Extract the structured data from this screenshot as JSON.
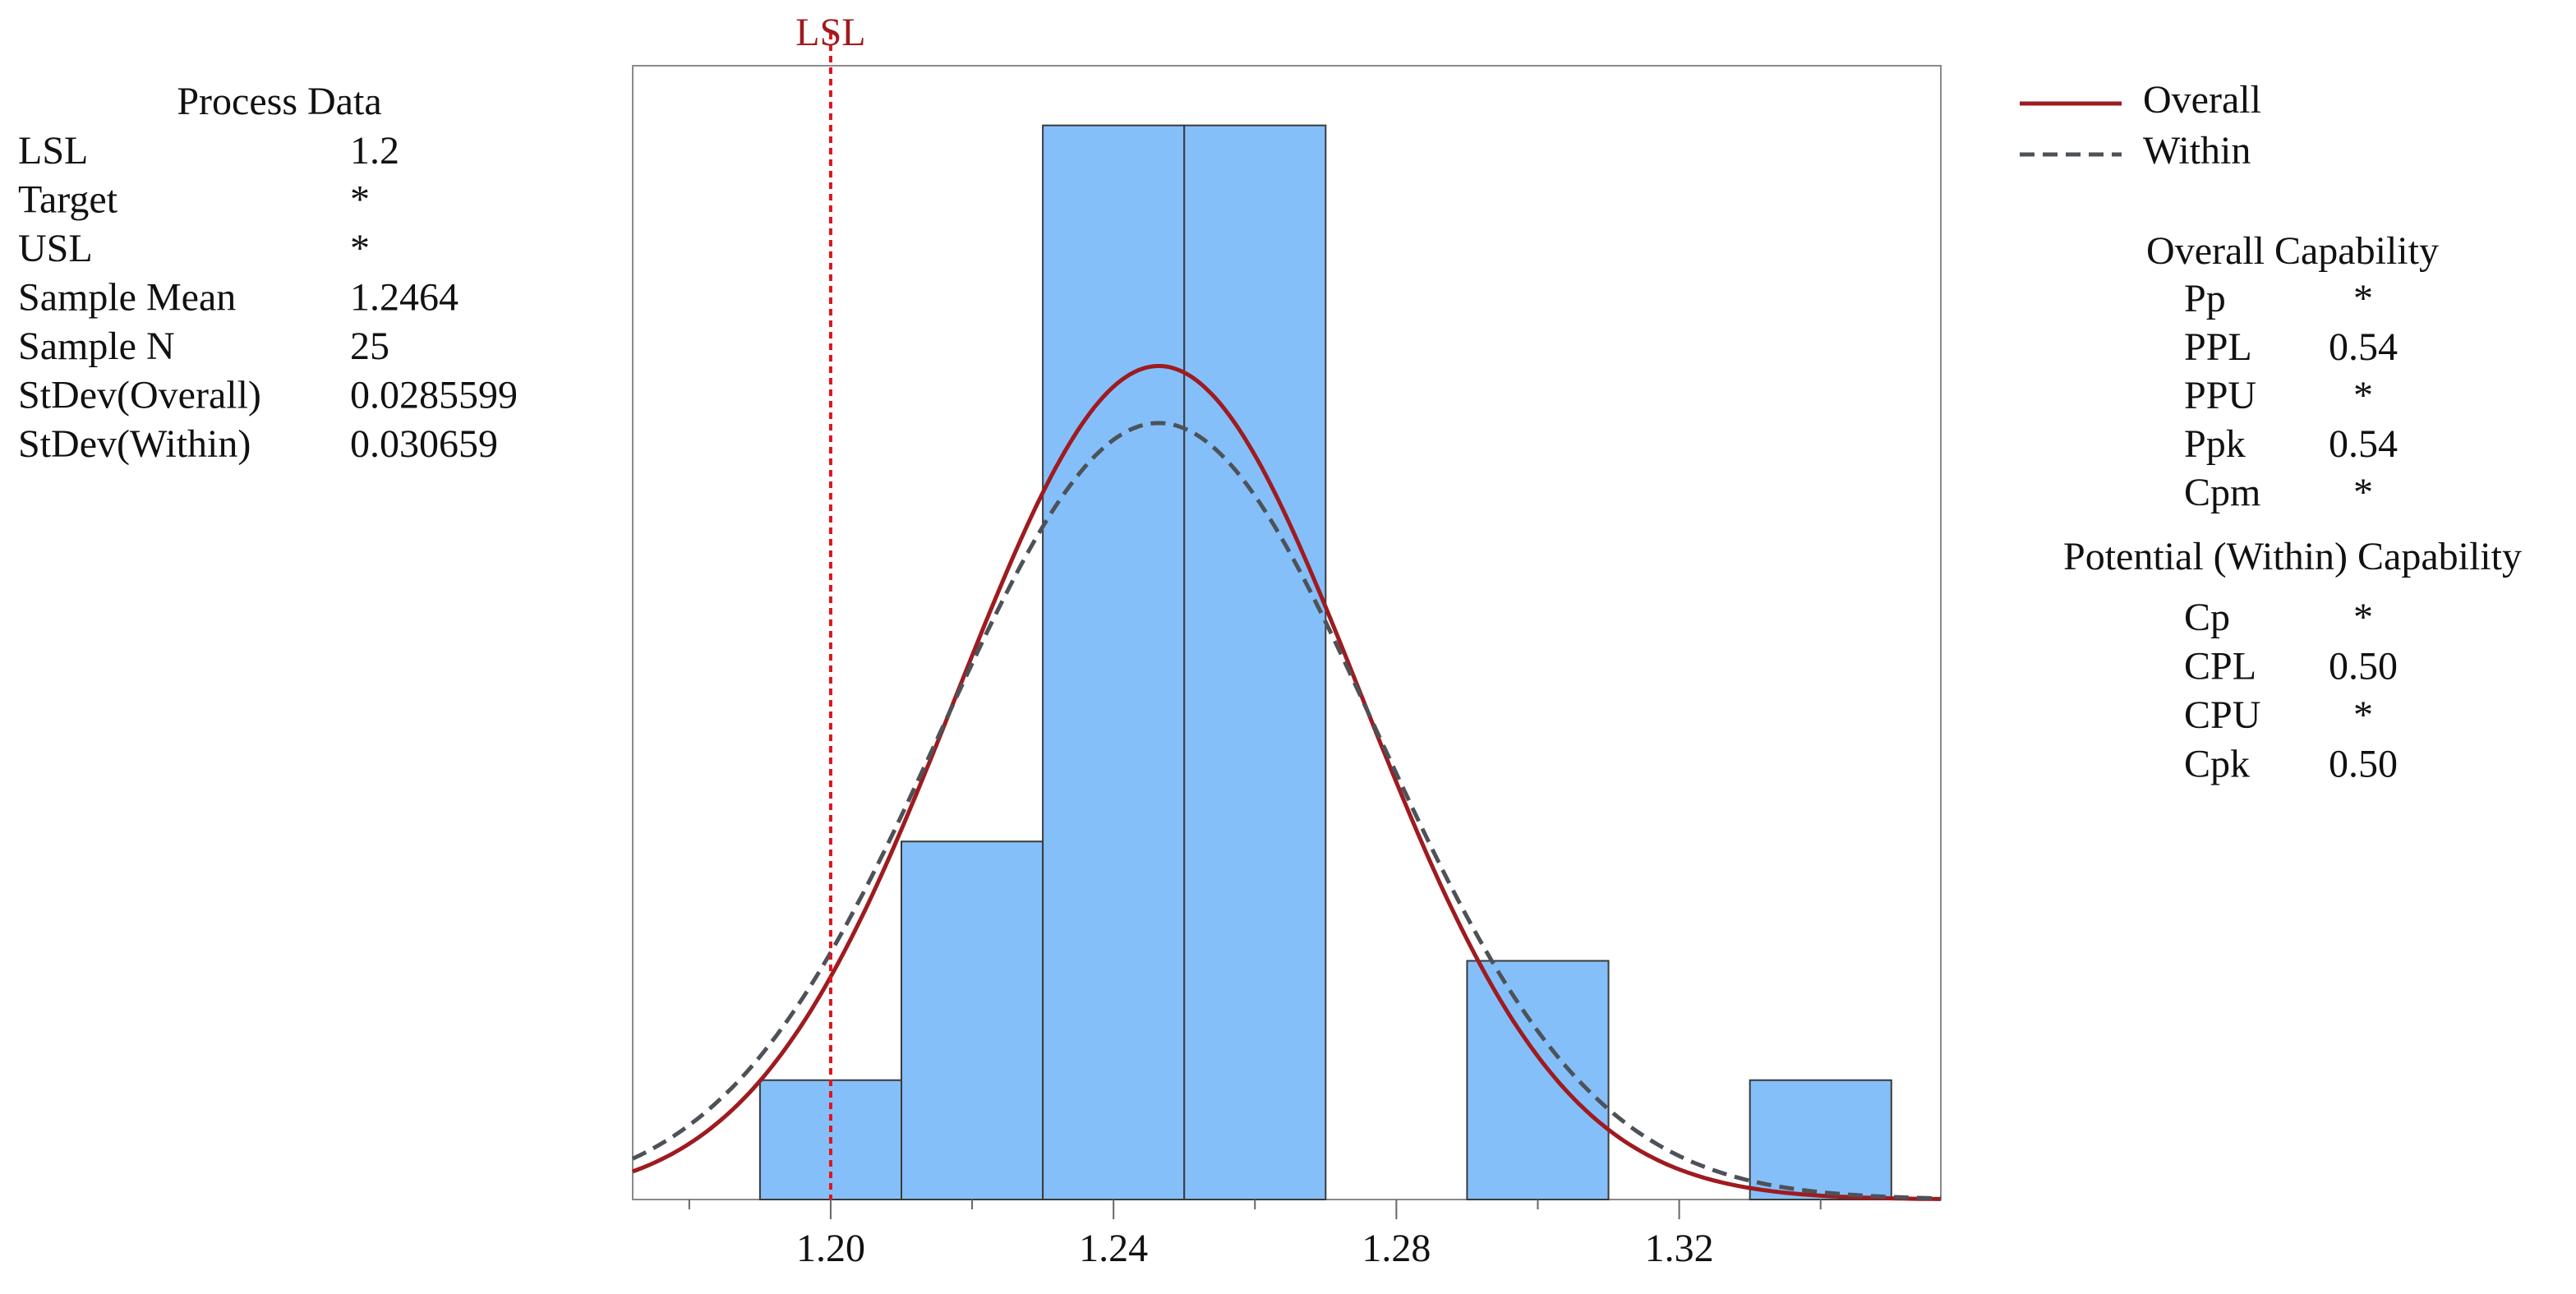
{
  "chart_data": {
    "type": "histogram",
    "lsl_label": "LSL",
    "bins": [
      1.19,
      1.21,
      1.23,
      1.25,
      1.27,
      1.29,
      1.31,
      1.33,
      1.35
    ],
    "counts": [
      1,
      3,
      9,
      9,
      0,
      2,
      0,
      1
    ],
    "color": "#85bff9",
    "xlim": [
      1.172,
      1.357
    ],
    "ylim": [
      0,
      9.5
    ],
    "xticks": [
      {
        "value": 1.2,
        "label": "1.20"
      },
      {
        "value": 1.24,
        "label": "1.24"
      },
      {
        "value": 1.28,
        "label": "1.28"
      },
      {
        "value": 1.32,
        "label": "1.32"
      }
    ],
    "xminorticks": [
      1.18,
      1.22,
      1.26,
      1.3,
      1.34
    ],
    "lsl_color": "#e0141b",
    "series": [
      {
        "name": "Overall",
        "color": "#9e1b1f",
        "dashed": false
      },
      {
        "name": "Within",
        "color": "#4d5258",
        "dashed": true
      }
    ]
  },
  "process_data": {
    "title": "Process Data",
    "rows": [
      [
        "LSL",
        1.2
      ],
      [
        "Target",
        "*"
      ],
      [
        "USL",
        "*"
      ],
      [
        "Sample Mean",
        1.2464
      ],
      [
        "Sample N",
        25
      ],
      [
        "StDev(Overall)",
        0.0285599
      ],
      [
        "StDev(Within)",
        0.030659
      ]
    ]
  },
  "overall_capability": {
    "title": "Overall Capability",
    "rows": [
      [
        "Pp",
        "*"
      ],
      [
        "PPL",
        "0.54"
      ],
      [
        "PPU",
        "*"
      ],
      [
        "Ppk",
        "0.54"
      ],
      [
        "Cpm",
        "*"
      ]
    ]
  },
  "potential_capability": {
    "title": "Potential (Within) Capability",
    "rows": [
      [
        "Cp",
        "*"
      ],
      [
        "CPL",
        "0.50"
      ],
      [
        "CPU",
        "*"
      ],
      [
        "Cpk",
        "0.50"
      ]
    ]
  }
}
